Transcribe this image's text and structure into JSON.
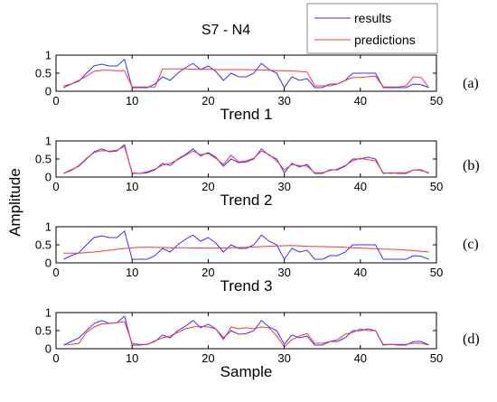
{
  "figure": {
    "title": "S7 - N4",
    "ylabel": "Amplitude",
    "legend": {
      "placement": "top-right",
      "entries": [
        "results",
        "predictions"
      ]
    }
  },
  "colors": {
    "results": "#3333ff",
    "predictions": "#ff3333",
    "axes": "#000000"
  },
  "chart_data": [
    {
      "type": "line",
      "panel_label": "(a)",
      "xlabel": "Trend 1",
      "xlim": [
        0,
        50
      ],
      "ylim": [
        0,
        1
      ],
      "xticks": [
        0,
        10,
        20,
        30,
        40,
        50
      ],
      "yticks": [
        0,
        0.5,
        1
      ],
      "ytick_labels": [
        "0",
        "0.5",
        "1"
      ],
      "grid": false,
      "series": [
        {
          "name": "results",
          "x": [
            1,
            2,
            3,
            4,
            5,
            6,
            7,
            8,
            9,
            10,
            11,
            12,
            13,
            14,
            15,
            16,
            17,
            18,
            19,
            20,
            21,
            22,
            23,
            24,
            25,
            26,
            27,
            28,
            29,
            30,
            31,
            32,
            33,
            34,
            35,
            36,
            37,
            38,
            39,
            40,
            41,
            42,
            43,
            44,
            45,
            46,
            47,
            48,
            49
          ],
          "y": [
            0.1,
            0.2,
            0.28,
            0.5,
            0.7,
            0.75,
            0.7,
            0.7,
            0.88,
            0.1,
            0.1,
            0.1,
            0.2,
            0.4,
            0.3,
            0.5,
            0.65,
            0.77,
            0.6,
            0.7,
            0.55,
            0.3,
            0.5,
            0.4,
            0.4,
            0.5,
            0.77,
            0.6,
            0.5,
            0.1,
            0.4,
            0.3,
            0.35,
            0.1,
            0.1,
            0.2,
            0.2,
            0.3,
            0.5,
            0.5,
            0.5,
            0.5,
            0.1,
            0.1,
            0.1,
            0.1,
            0.2,
            0.18,
            0.1
          ]
        },
        {
          "name": "predictions",
          "x": [
            1,
            2,
            3,
            4,
            5,
            6,
            7,
            8,
            9,
            10,
            11,
            12,
            13,
            14,
            15,
            16,
            17,
            18,
            19,
            20,
            21,
            22,
            23,
            24,
            25,
            26,
            27,
            28,
            29,
            30,
            31,
            32,
            33,
            34,
            35,
            36,
            37,
            38,
            39,
            40,
            41,
            42,
            43,
            44,
            45,
            46,
            47,
            48,
            49
          ],
          "y": [
            0.15,
            0.2,
            0.3,
            0.42,
            0.55,
            0.58,
            0.58,
            0.57,
            0.57,
            0.12,
            0.12,
            0.12,
            0.12,
            0.62,
            0.62,
            0.62,
            0.62,
            0.61,
            0.61,
            0.61,
            0.6,
            0.6,
            0.6,
            0.6,
            0.6,
            0.59,
            0.59,
            0.58,
            0.57,
            0.57,
            0.56,
            0.55,
            0.53,
            0.15,
            0.15,
            0.15,
            0.2,
            0.3,
            0.38,
            0.38,
            0.4,
            0.42,
            0.12,
            0.12,
            0.12,
            0.15,
            0.4,
            0.38,
            0.1
          ]
        }
      ]
    },
    {
      "type": "line",
      "panel_label": "(b)",
      "xlabel": "Trend 2",
      "xlim": [
        0,
        50
      ],
      "ylim": [
        0,
        1
      ],
      "xticks": [
        0,
        10,
        20,
        30,
        40,
        50
      ],
      "yticks": [
        0,
        0.5,
        1
      ],
      "ytick_labels": [
        "0",
        "0.5",
        "1"
      ],
      "grid": false,
      "series": [
        {
          "name": "results",
          "x": [
            1,
            2,
            3,
            4,
            5,
            6,
            7,
            8,
            9,
            10,
            11,
            12,
            13,
            14,
            15,
            16,
            17,
            18,
            19,
            20,
            21,
            22,
            23,
            24,
            25,
            26,
            27,
            28,
            29,
            30,
            31,
            32,
            33,
            34,
            35,
            36,
            37,
            38,
            39,
            40,
            41,
            42,
            43,
            44,
            45,
            46,
            47,
            48,
            49
          ],
          "y": [
            0.1,
            0.2,
            0.3,
            0.5,
            0.7,
            0.78,
            0.7,
            0.72,
            0.9,
            0.1,
            0.1,
            0.12,
            0.2,
            0.38,
            0.32,
            0.5,
            0.62,
            0.78,
            0.58,
            0.68,
            0.55,
            0.3,
            0.5,
            0.4,
            0.42,
            0.5,
            0.78,
            0.6,
            0.5,
            0.12,
            0.38,
            0.28,
            0.35,
            0.1,
            0.1,
            0.2,
            0.2,
            0.3,
            0.5,
            0.5,
            0.55,
            0.5,
            0.1,
            0.12,
            0.1,
            0.1,
            0.2,
            0.2,
            0.1
          ]
        },
        {
          "name": "predictions",
          "x": [
            1,
            2,
            3,
            4,
            5,
            6,
            7,
            8,
            9,
            10,
            11,
            12,
            13,
            14,
            15,
            16,
            17,
            18,
            19,
            20,
            21,
            22,
            23,
            24,
            25,
            26,
            27,
            28,
            29,
            30,
            31,
            32,
            33,
            34,
            35,
            36,
            37,
            38,
            39,
            40,
            41,
            42,
            43,
            44,
            45,
            46,
            47,
            48,
            49
          ],
          "y": [
            0.1,
            0.18,
            0.32,
            0.52,
            0.68,
            0.73,
            0.72,
            0.74,
            0.85,
            0.12,
            0.1,
            0.15,
            0.22,
            0.33,
            0.38,
            0.48,
            0.6,
            0.72,
            0.62,
            0.65,
            0.52,
            0.35,
            0.6,
            0.42,
            0.45,
            0.52,
            0.72,
            0.62,
            0.45,
            0.2,
            0.35,
            0.32,
            0.3,
            0.12,
            0.12,
            0.18,
            0.22,
            0.32,
            0.45,
            0.52,
            0.48,
            0.45,
            0.12,
            0.1,
            0.12,
            0.12,
            0.2,
            0.18,
            0.12
          ]
        }
      ]
    },
    {
      "type": "line",
      "panel_label": "(c)",
      "xlabel": "Trend 3",
      "xlim": [
        0,
        50
      ],
      "ylim": [
        0,
        1
      ],
      "xticks": [
        0,
        10,
        20,
        30,
        40,
        50
      ],
      "yticks": [
        0,
        0.5,
        1
      ],
      "ytick_labels": [
        "0",
        "0.5",
        "1"
      ],
      "grid": false,
      "series": [
        {
          "name": "results",
          "x": [
            1,
            2,
            3,
            4,
            5,
            6,
            7,
            8,
            9,
            10,
            11,
            12,
            13,
            14,
            15,
            16,
            17,
            18,
            19,
            20,
            21,
            22,
            23,
            24,
            25,
            26,
            27,
            28,
            29,
            30,
            31,
            32,
            33,
            34,
            35,
            36,
            37,
            38,
            39,
            40,
            41,
            42,
            43,
            44,
            45,
            46,
            47,
            48,
            49
          ],
          "y": [
            0.1,
            0.2,
            0.28,
            0.5,
            0.7,
            0.75,
            0.7,
            0.7,
            0.88,
            0.1,
            0.1,
            0.1,
            0.2,
            0.4,
            0.3,
            0.5,
            0.65,
            0.77,
            0.6,
            0.7,
            0.55,
            0.3,
            0.5,
            0.4,
            0.4,
            0.5,
            0.77,
            0.6,
            0.5,
            0.1,
            0.4,
            0.3,
            0.35,
            0.1,
            0.1,
            0.2,
            0.2,
            0.3,
            0.5,
            0.5,
            0.5,
            0.5,
            0.1,
            0.1,
            0.1,
            0.1,
            0.2,
            0.18,
            0.1
          ]
        },
        {
          "name": "predictions",
          "x": [
            1,
            3,
            5,
            7,
            9,
            11,
            13,
            15,
            17,
            19,
            21,
            23,
            25,
            27,
            29,
            31,
            33,
            35,
            37,
            39,
            41,
            43,
            45,
            47,
            49
          ],
          "y": [
            0.27,
            0.27,
            0.3,
            0.35,
            0.4,
            0.43,
            0.43,
            0.42,
            0.42,
            0.41,
            0.41,
            0.42,
            0.43,
            0.45,
            0.47,
            0.48,
            0.46,
            0.45,
            0.44,
            0.42,
            0.4,
            0.38,
            0.37,
            0.34,
            0.3
          ]
        }
      ]
    },
    {
      "type": "line",
      "panel_label": "(d)",
      "xlabel": "Sample",
      "xlim": [
        0,
        50
      ],
      "ylim": [
        0,
        1
      ],
      "xticks": [
        0,
        10,
        20,
        30,
        40,
        50
      ],
      "yticks": [
        0,
        0.5,
        1
      ],
      "ytick_labels": [
        "0",
        "0.5",
        "1"
      ],
      "grid": false,
      "series": [
        {
          "name": "results",
          "x": [
            1,
            2,
            3,
            4,
            5,
            6,
            7,
            8,
            9,
            10,
            11,
            12,
            13,
            14,
            15,
            16,
            17,
            18,
            19,
            20,
            21,
            22,
            23,
            24,
            25,
            26,
            27,
            28,
            29,
            30,
            31,
            32,
            33,
            34,
            35,
            36,
            37,
            38,
            39,
            40,
            41,
            42,
            43,
            44,
            45,
            46,
            47,
            48,
            49
          ],
          "y": [
            0.1,
            0.2,
            0.3,
            0.5,
            0.7,
            0.78,
            0.7,
            0.72,
            0.9,
            0.1,
            0.1,
            0.12,
            0.2,
            0.38,
            0.3,
            0.5,
            0.62,
            0.78,
            0.58,
            0.68,
            0.55,
            0.3,
            0.5,
            0.4,
            0.42,
            0.5,
            0.78,
            0.6,
            0.5,
            0.12,
            0.38,
            0.3,
            0.35,
            0.1,
            0.1,
            0.2,
            0.2,
            0.3,
            0.5,
            0.5,
            0.55,
            0.5,
            0.1,
            0.12,
            0.1,
            0.1,
            0.2,
            0.2,
            0.1
          ]
        },
        {
          "name": "predictions",
          "x": [
            1,
            2,
            3,
            4,
            5,
            6,
            7,
            8,
            9,
            10,
            11,
            12,
            13,
            14,
            15,
            16,
            17,
            18,
            19,
            20,
            21,
            22,
            23,
            24,
            25,
            26,
            27,
            28,
            29,
            30,
            31,
            32,
            33,
            34,
            35,
            36,
            37,
            38,
            39,
            40,
            41,
            42,
            43,
            44,
            45,
            46,
            47,
            48,
            49
          ],
          "y": [
            0.12,
            0.12,
            0.15,
            0.45,
            0.6,
            0.68,
            0.7,
            0.72,
            0.75,
            0.15,
            0.12,
            0.12,
            0.22,
            0.3,
            0.35,
            0.45,
            0.55,
            0.6,
            0.62,
            0.6,
            0.55,
            0.25,
            0.6,
            0.55,
            0.58,
            0.55,
            0.6,
            0.58,
            0.35,
            0.05,
            0.25,
            0.35,
            0.42,
            0.15,
            0.15,
            0.2,
            0.25,
            0.4,
            0.45,
            0.55,
            0.5,
            0.5,
            0.12,
            0.12,
            0.12,
            0.12,
            0.15,
            0.15,
            0.1
          ]
        }
      ]
    }
  ]
}
